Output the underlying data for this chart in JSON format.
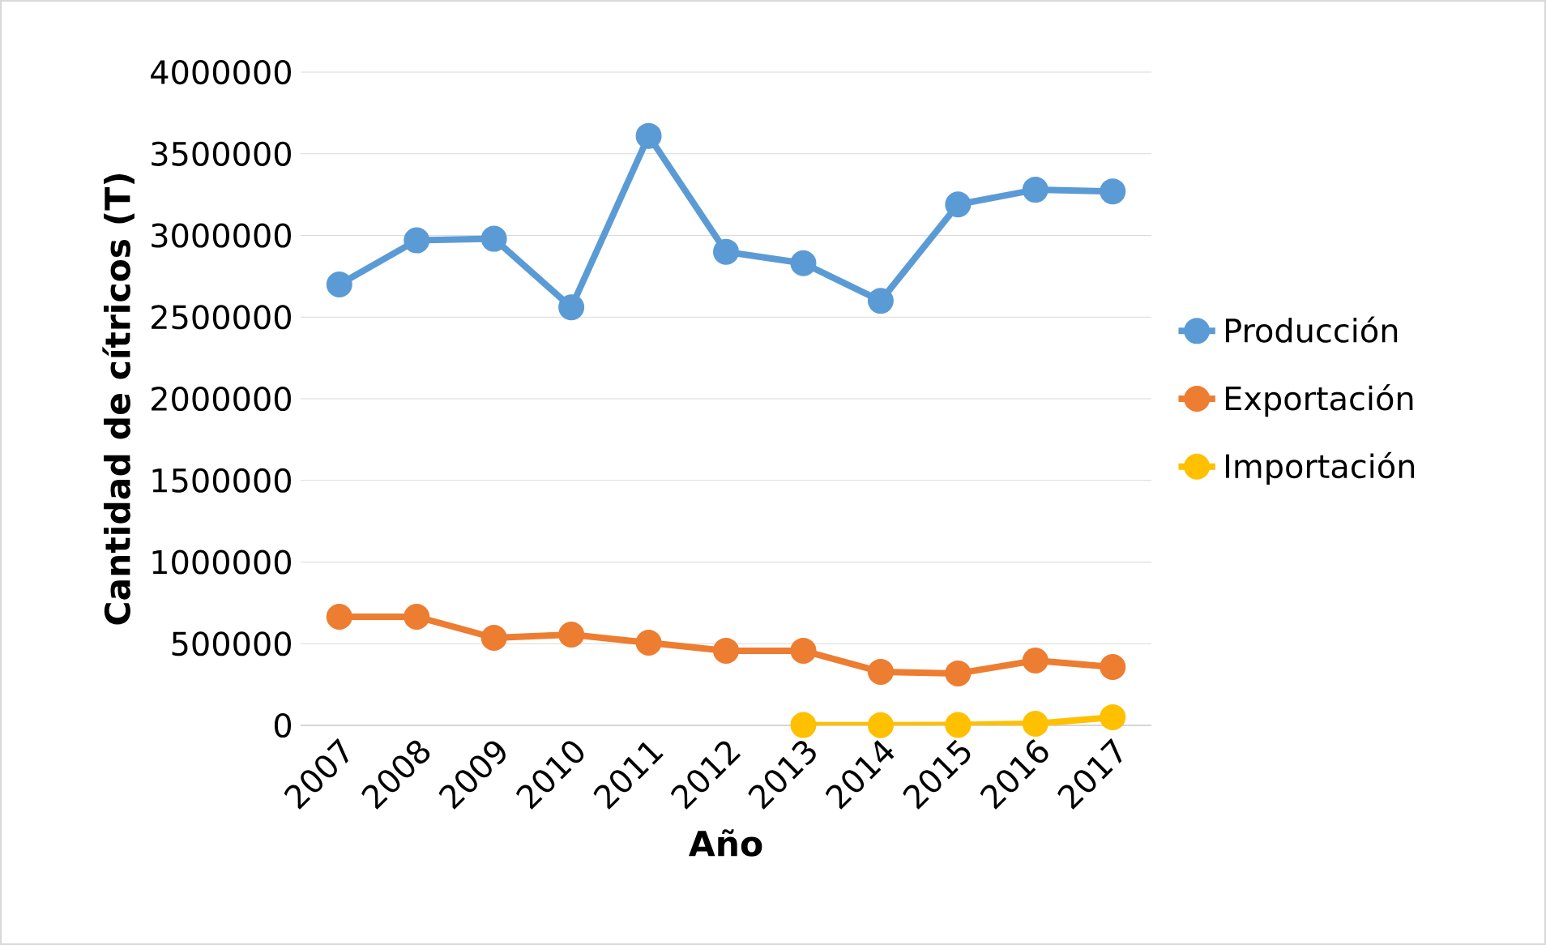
{
  "chart_data": {
    "type": "line",
    "xlabel": "Año",
    "ylabel": "Cantidad de cítricos (T)",
    "categories": [
      "2007",
      "2008",
      "2009",
      "2010",
      "2011",
      "2012",
      "2013",
      "2014",
      "2015",
      "2016",
      "2017"
    ],
    "series": [
      {
        "name": "Producción",
        "color": "#5b9bd5",
        "values": [
          2700000,
          2970000,
          2980000,
          2560000,
          3610000,
          2900000,
          2830000,
          2600000,
          3190000,
          3280000,
          3270000
        ]
      },
      {
        "name": "Exportación",
        "color": "#ed7d31",
        "values": [
          665000,
          665000,
          536000,
          556000,
          506000,
          457000,
          457000,
          328000,
          318000,
          397000,
          357000
        ]
      },
      {
        "name": "Importación",
        "color": "#ffc000",
        "values": [
          null,
          null,
          null,
          null,
          null,
          null,
          2000,
          1000,
          3000,
          10000,
          50000
        ]
      }
    ],
    "ylim": [
      0,
      4000000
    ],
    "yticks": [
      0,
      500000,
      1000000,
      1500000,
      2000000,
      2500000,
      3000000,
      3500000,
      4000000
    ],
    "grid": "y",
    "legend": "right",
    "marker": "circle",
    "line_style": "solid"
  }
}
